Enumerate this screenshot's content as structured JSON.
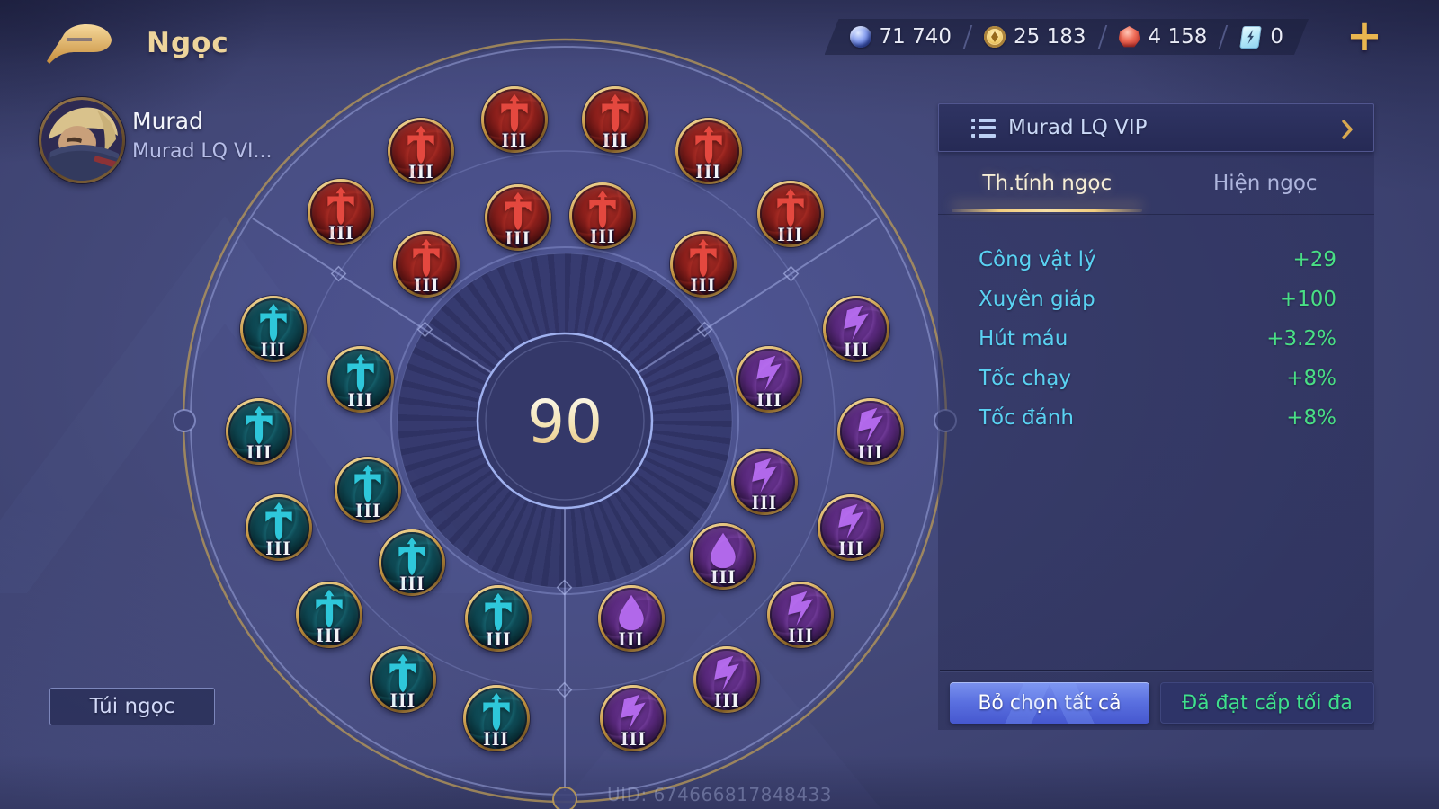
{
  "header": {
    "title": "Ngọc"
  },
  "currencies": [
    {
      "icon": "orb",
      "value": "71 740"
    },
    {
      "icon": "coin",
      "value": "25 183"
    },
    {
      "icon": "gem",
      "value": "4 158"
    },
    {
      "icon": "ticket",
      "value": "0"
    }
  ],
  "topbar": {
    "add_label": "+"
  },
  "player": {
    "name": "Murad",
    "rune_page": "Murad LQ VI..."
  },
  "panel": {
    "title": "Murad LQ VIP",
    "tabs": [
      {
        "label": "Th.tính ngọc",
        "active": true
      },
      {
        "label": "Hiện ngọc",
        "active": false
      }
    ],
    "stats": [
      {
        "label": "Công vật lý",
        "value": "+29"
      },
      {
        "label": "Xuyên giáp",
        "value": "+100"
      },
      {
        "label": "Hút máu",
        "value": "+3.2%"
      },
      {
        "label": "Tốc chạy",
        "value": "+8%"
      },
      {
        "label": "Tốc đánh",
        "value": "+8%"
      }
    ],
    "deselect_button": "Bỏ chọn tất cả",
    "max_level_button": "Đã đạt cấp tối đa"
  },
  "wheel": {
    "level": "90"
  },
  "runes": [
    {
      "color": "red",
      "icon": "sword",
      "ring": "outer",
      "angle": -47,
      "level": "III"
    },
    {
      "color": "red",
      "icon": "sword",
      "ring": "outer",
      "angle": -28,
      "level": "III"
    },
    {
      "color": "red",
      "icon": "sword",
      "ring": "outer",
      "angle": -9.5,
      "level": "III"
    },
    {
      "color": "red",
      "icon": "sword",
      "ring": "outer",
      "angle": 9.5,
      "level": "III"
    },
    {
      "color": "red",
      "icon": "sword",
      "ring": "outer",
      "angle": 28,
      "level": "III"
    },
    {
      "color": "red",
      "icon": "sword",
      "ring": "outer",
      "angle": 47.5,
      "level": "III"
    },
    {
      "color": "red",
      "icon": "sword",
      "ring": "inner",
      "angle": -41.5,
      "level": "III"
    },
    {
      "color": "red",
      "icon": "sword",
      "ring": "inner",
      "angle": -13,
      "level": "III"
    },
    {
      "color": "red",
      "icon": "sword",
      "ring": "inner",
      "angle": 10.5,
      "level": "III"
    },
    {
      "color": "red",
      "icon": "sword",
      "ring": "inner",
      "angle": 41.5,
      "level": "III"
    },
    {
      "color": "teal",
      "icon": "sword",
      "ring": "outer",
      "angle": -72.5,
      "level": "III"
    },
    {
      "color": "teal",
      "icon": "sword",
      "ring": "outer",
      "angle": -92,
      "level": "III"
    },
    {
      "color": "teal",
      "icon": "sword",
      "ring": "outer",
      "angle": -110.5,
      "level": "III"
    },
    {
      "color": "teal",
      "icon": "sword",
      "ring": "outer",
      "angle": -129.5,
      "level": "III"
    },
    {
      "color": "teal",
      "icon": "sword",
      "ring": "outer",
      "angle": -148,
      "level": "III"
    },
    {
      "color": "teal",
      "icon": "sword",
      "ring": "outer",
      "angle": -167,
      "level": "III"
    },
    {
      "color": "teal",
      "icon": "sword",
      "ring": "inner",
      "angle": -78.5,
      "level": "III"
    },
    {
      "color": "teal",
      "icon": "sword",
      "ring": "inner",
      "angle": -109.5,
      "level": "III"
    },
    {
      "color": "teal",
      "icon": "sword",
      "ring": "inner",
      "angle": -133,
      "level": "III"
    },
    {
      "color": "teal",
      "icon": "sword",
      "ring": "inner",
      "angle": -161.5,
      "level": "III"
    },
    {
      "color": "purple",
      "icon": "bolt",
      "ring": "outer",
      "angle": 72.5,
      "level": "III"
    },
    {
      "color": "purple",
      "icon": "bolt",
      "ring": "outer",
      "angle": 92,
      "level": "III"
    },
    {
      "color": "purple",
      "icon": "bolt",
      "ring": "outer",
      "angle": 110.5,
      "level": "III"
    },
    {
      "color": "purple",
      "icon": "bolt",
      "ring": "outer",
      "angle": 129.5,
      "level": "III"
    },
    {
      "color": "purple",
      "icon": "bolt",
      "ring": "outer",
      "angle": 148,
      "level": "III"
    },
    {
      "color": "purple",
      "icon": "bolt",
      "ring": "outer",
      "angle": 167,
      "level": "III"
    },
    {
      "color": "purple",
      "icon": "bolt",
      "ring": "inner",
      "angle": 78.5,
      "level": "III"
    },
    {
      "color": "purple",
      "icon": "bolt",
      "ring": "inner",
      "angle": 107,
      "level": "III"
    },
    {
      "color": "purple",
      "icon": "drop",
      "ring": "inner",
      "angle": 130.5,
      "level": "III"
    },
    {
      "color": "purple",
      "icon": "drop",
      "ring": "inner",
      "angle": 161.5,
      "level": "III"
    }
  ],
  "footer": {
    "bag_button": "Túi ngọc",
    "uid": "UID: 674666817848433"
  },
  "colors": {
    "accent_gold": "#e3b45c",
    "stat_label": "#5ad2f2",
    "stat_value": "#49df85",
    "tab_active": "#f6eed6",
    "deselect_bg": "#5a70e0",
    "max_text": "#3fe08d"
  }
}
